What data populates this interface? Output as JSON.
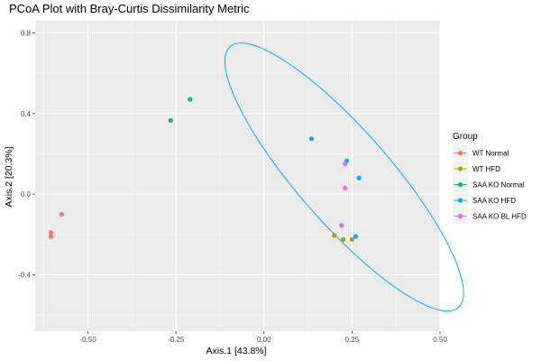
{
  "chart_data": {
    "type": "scatter",
    "title": "PCoA Plot with Bray-Curtis Dissimilarity Metric",
    "xlabel": "Axis.1   [43.8%]",
    "ylabel": "Axis.2   [20.3%]",
    "xlim": [
      -0.65,
      0.5
    ],
    "ylim": [
      -0.68,
      0.86
    ],
    "x_ticks": [
      -0.5,
      -0.25,
      0.0,
      0.25,
      0.5
    ],
    "x_tick_labels": [
      "-0.50",
      "-0.25",
      "0.00",
      "0.25",
      "0.50"
    ],
    "y_ticks": [
      -0.4,
      0.0,
      0.4,
      0.8
    ],
    "y_tick_labels": [
      "-0.4",
      "0.0",
      "0.4",
      "0.8"
    ],
    "grid": true,
    "legend": {
      "title": "Group",
      "placement": "right",
      "entries": [
        "WT Normal",
        "WT HFD",
        "SAA KO Normal",
        "SAA KO HFD",
        "SAA KO BL HFD"
      ]
    },
    "series": [
      {
        "name": "WT Normal",
        "color": "#F8766D",
        "points": [
          [
            -0.575,
            -0.1
          ],
          [
            -0.605,
            -0.19
          ],
          [
            -0.605,
            -0.21
          ]
        ]
      },
      {
        "name": "WT HFD",
        "color": "#A3A500",
        "points": [
          [
            0.2,
            -0.205
          ],
          [
            0.225,
            -0.225
          ],
          [
            0.25,
            -0.225
          ]
        ]
      },
      {
        "name": "SAA KO Normal",
        "color": "#00BF7D",
        "points": [
          [
            -0.21,
            0.47
          ],
          [
            -0.265,
            0.365
          ]
        ]
      },
      {
        "name": "SAA KO HFD",
        "color": "#00B0F6",
        "points": [
          [
            0.135,
            0.275
          ],
          [
            0.235,
            0.165
          ],
          [
            0.27,
            0.08
          ],
          [
            0.26,
            -0.21
          ]
        ]
      },
      {
        "name": "SAA KO BL HFD",
        "color": "#E76BF3",
        "points": [
          [
            0.23,
            0.15
          ],
          [
            0.23,
            0.03
          ],
          [
            0.22,
            -0.155
          ]
        ]
      }
    ],
    "ellipse": {
      "series": "SAA KO HFD",
      "color": "#00B0F6",
      "center": [
        0.228,
        0.085
      ],
      "semi_major_axis": 0.73,
      "semi_minor_axis": 0.155,
      "angle_deg": -65
    }
  }
}
